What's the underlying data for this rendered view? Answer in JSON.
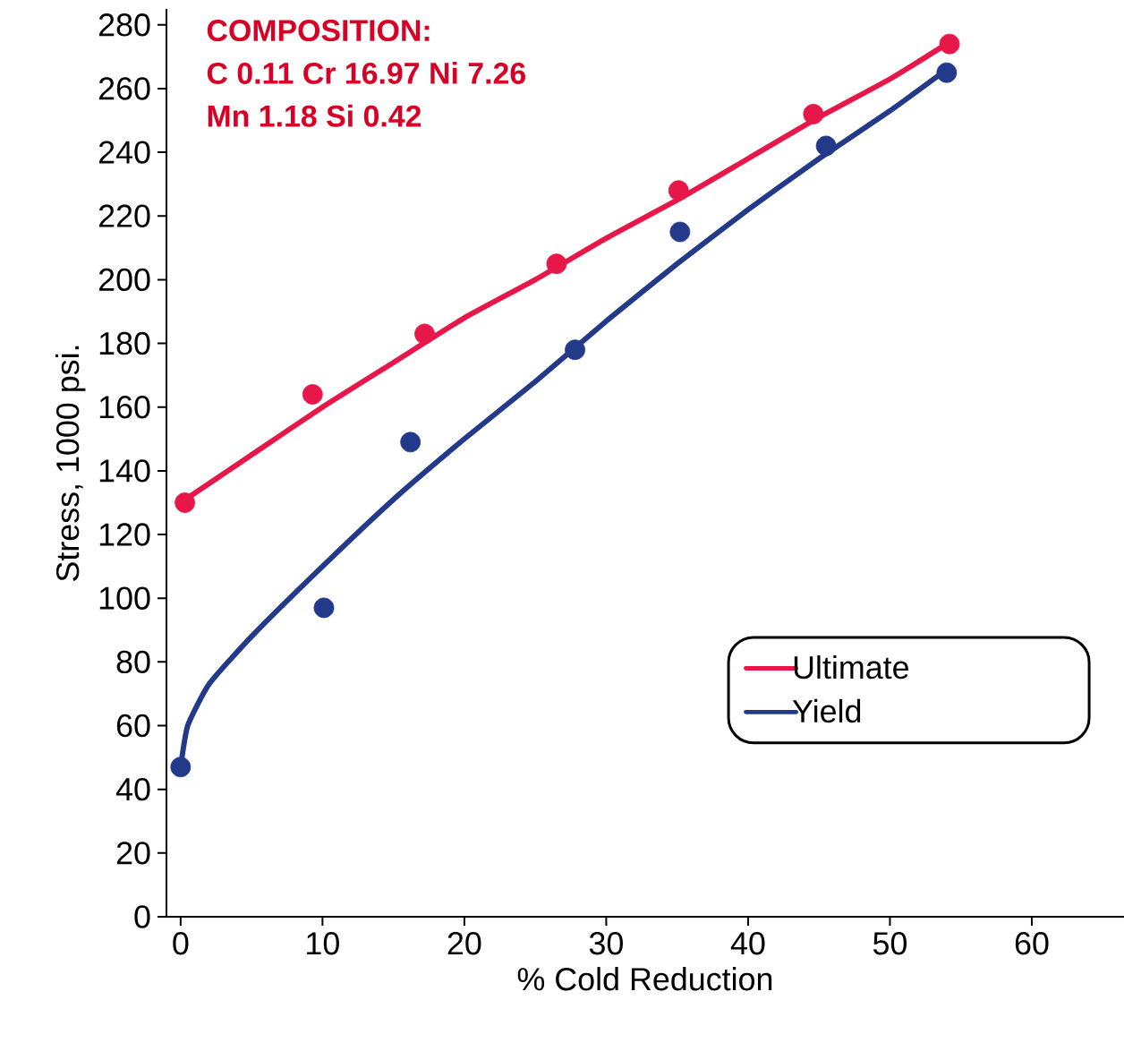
{
  "chart_data": {
    "type": "line",
    "xlabel": "% Cold Reduction",
    "ylabel": "Stress, 1000 psi.",
    "annotations": [
      "COMPOSITION:",
      "C 0.11  Cr 16.97  Ni 7.26",
      "Mn 1.18  Si 0.42"
    ],
    "xlim": [
      -1,
      66.5
    ],
    "ylim": [
      0,
      285
    ],
    "xticks": [
      0,
      10,
      20,
      30,
      40,
      50,
      60
    ],
    "yticks": [
      0,
      20,
      40,
      60,
      80,
      100,
      120,
      140,
      160,
      180,
      200,
      220,
      240,
      260,
      280
    ],
    "legend": "right",
    "grid": false,
    "series": [
      {
        "name": "Ultimate",
        "color": "#e8174a",
        "marker": "none",
        "x": [
          0,
          5,
          10,
          15,
          20,
          25,
          30,
          35,
          40,
          45,
          50,
          54
        ],
        "values": [
          130,
          145,
          160,
          174,
          188,
          200,
          213,
          225,
          238,
          251,
          263,
          274
        ]
      },
      {
        "name": "Yield",
        "color": "#233a8a",
        "marker": "none",
        "x": [
          0,
          0.5,
          2,
          5,
          10,
          15,
          20,
          25,
          30,
          35,
          40,
          45,
          50,
          54
        ],
        "values": [
          47,
          60,
          73,
          88,
          110,
          131,
          150,
          168,
          187,
          205,
          222,
          238,
          253,
          266
        ]
      },
      {
        "type": "scatter",
        "color": "#e8174a",
        "marker": "circle",
        "x": [
          0.3,
          9.3,
          17.2,
          26.5,
          35.1,
          44.6,
          54.2
        ],
        "values": [
          130,
          164,
          183,
          205,
          228,
          252,
          274
        ]
      },
      {
        "type": "scatter",
        "color": "#233a8a",
        "marker": "circle",
        "x": [
          0,
          10.1,
          16.2,
          27.8,
          35.2,
          45.5,
          54
        ],
        "values": [
          47,
          97,
          149,
          178,
          215,
          242,
          265
        ]
      }
    ]
  }
}
